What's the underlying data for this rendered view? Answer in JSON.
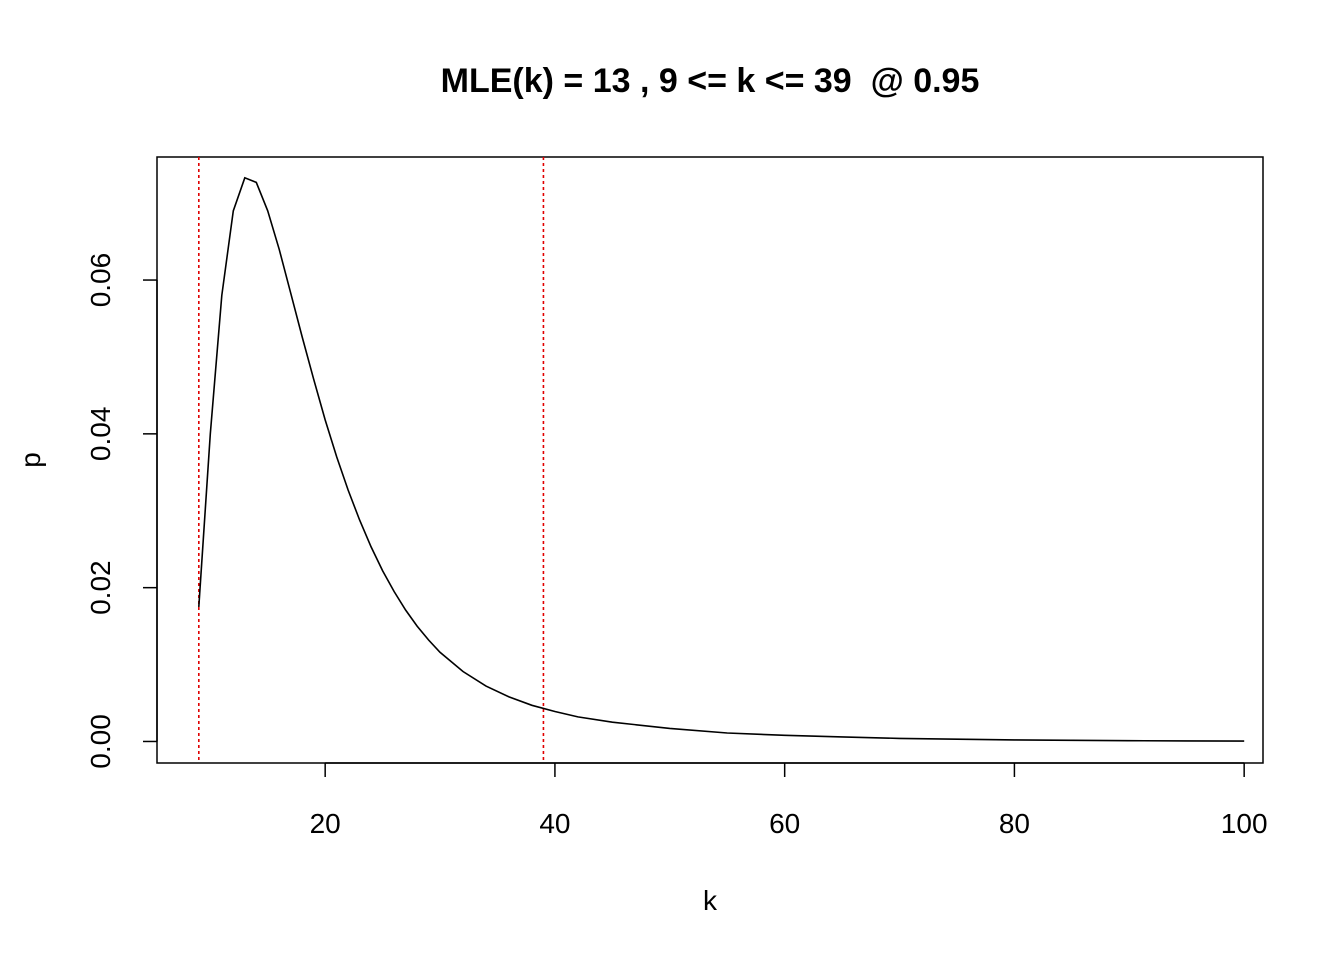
{
  "chart_data": {
    "type": "line",
    "title": "MLE(k) = 13 , 9 <= k <= 39  @ 0.95",
    "xlabel": "k",
    "ylabel": "p",
    "xlim": [
      5.36,
      101.64
    ],
    "ylim": [
      -0.0028,
      0.076
    ],
    "x_ticks": [
      20,
      40,
      60,
      80,
      100
    ],
    "x_tick_labels": [
      "20",
      "40",
      "60",
      "80",
      "100"
    ],
    "y_ticks": [
      0.0,
      0.02,
      0.04,
      0.06
    ],
    "y_tick_labels": [
      "0.00",
      "0.02",
      "0.04",
      "0.06"
    ],
    "grid": false,
    "legend": "none",
    "series": [
      {
        "color": "#000000",
        "x": [
          9,
          10,
          11,
          12,
          13,
          14,
          15,
          16,
          17,
          18,
          19,
          20,
          21,
          22,
          23,
          24,
          25,
          26,
          27,
          28,
          29,
          30,
          32,
          34,
          36,
          38,
          40,
          42,
          45,
          50,
          55,
          60,
          65,
          70,
          75,
          80,
          85,
          90,
          95,
          100
        ],
        "y": [
          0.0175,
          0.04,
          0.058,
          0.069,
          0.0733,
          0.0727,
          0.069,
          0.064,
          0.0583,
          0.0526,
          0.0471,
          0.0418,
          0.037,
          0.0327,
          0.0288,
          0.0253,
          0.0222,
          0.0195,
          0.0171,
          0.015,
          0.0132,
          0.0116,
          0.0091,
          0.0072,
          0.0058,
          0.0047,
          0.0039,
          0.0032,
          0.0025,
          0.0017,
          0.0011,
          0.0008,
          0.0006,
          0.0004,
          0.0003,
          0.0002,
          0.00015,
          0.0001,
          7e-05,
          5e-05
        ]
      }
    ],
    "vertical_lines": [
      {
        "x": 9,
        "color": "#e00000",
        "style": "dotted"
      },
      {
        "x": 39,
        "color": "#e00000",
        "style": "dotted"
      }
    ]
  }
}
